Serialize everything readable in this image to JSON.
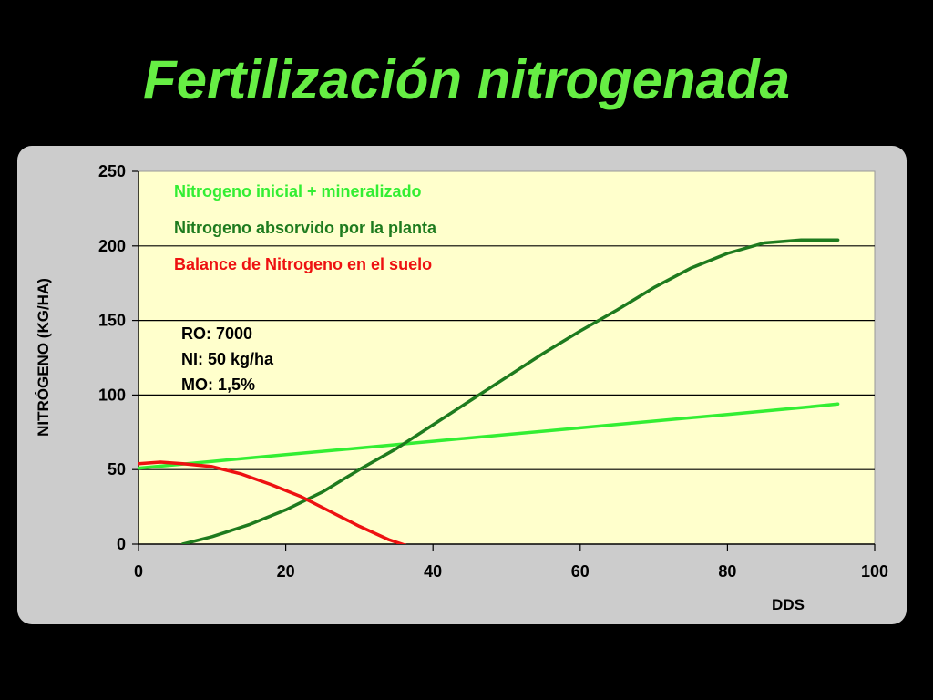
{
  "slide": {
    "title": "Fertilización nitrogenada"
  },
  "chart_data": {
    "type": "line",
    "xlabel": "DDS",
    "ylabel": "NITRÓGENO (KG/HA)",
    "xlim": [
      0,
      100
    ],
    "ylim": [
      0,
      250
    ],
    "xticks": [
      "0",
      "20",
      "40",
      "60",
      "80",
      "100"
    ],
    "yticks": [
      "0",
      "50",
      "100",
      "150",
      "200",
      "250"
    ],
    "grid": "horizontal",
    "plot_background": "#ffffcc",
    "legend_placement": "top-left",
    "series": [
      {
        "name": "Nitrogeno inicial + mineralizado",
        "color": "#33ee33",
        "x": [
          0,
          10,
          20,
          30,
          40,
          50,
          60,
          70,
          80,
          90,
          95
        ],
        "y": [
          51,
          55.5,
          60,
          64.5,
          69,
          73.5,
          78,
          82.5,
          87,
          91.5,
          94
        ]
      },
      {
        "name": "Nitrogeno absorvido por la planta",
        "color": "#1e7b1e",
        "x": [
          6,
          10,
          15,
          20,
          25,
          30,
          35,
          40,
          45,
          50,
          55,
          60,
          65,
          70,
          75,
          80,
          85,
          90,
          95
        ],
        "y": [
          0,
          5,
          13,
          23,
          35,
          50,
          64,
          80,
          96,
          112,
          128,
          143,
          157,
          172,
          185,
          195,
          202,
          204,
          204
        ]
      },
      {
        "name": "Balance de Nitrogeno en el suelo",
        "color": "#ee1111",
        "x": [
          0,
          3,
          6,
          10,
          14,
          18,
          22,
          26,
          30,
          34,
          37
        ],
        "y": [
          54,
          55,
          54,
          52,
          47,
          40,
          32,
          22,
          12,
          3,
          -2
        ]
      }
    ],
    "annotations": [
      "RO: 7000",
      "NI: 50 kg/ha",
      "MO: 1,5%"
    ]
  }
}
